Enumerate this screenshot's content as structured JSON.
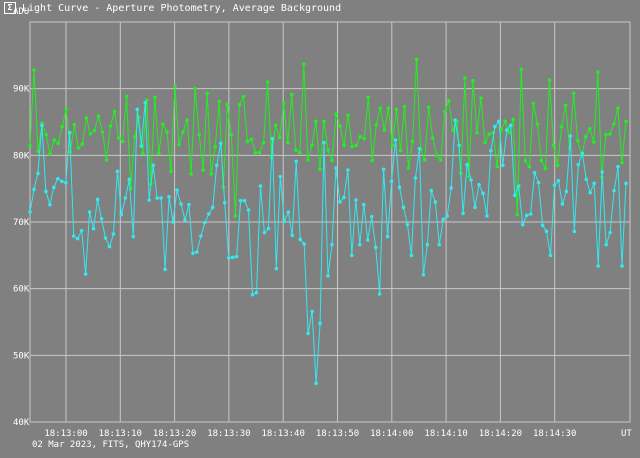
{
  "window": {
    "title": "Light Curve - Aperture Photometry, Average Background",
    "icon": "app-icon",
    "icon_glyph": "Σ"
  },
  "footer": {
    "text": "02 Mar 2023, FITS, QHY174-GPS"
  },
  "colors": {
    "background": "#808080",
    "grid": "#c8c8c8",
    "text": "#ffffff",
    "series_green": "#22ee22",
    "series_cyan": "#33e8f0"
  },
  "chart_data": {
    "type": "line",
    "y_unit_label": "ADU",
    "x_unit_label": "UT",
    "y_ticks": [
      "90K",
      "80K",
      "70K",
      "60K",
      "50K",
      "40K"
    ],
    "y_tick_values": [
      90000,
      80000,
      70000,
      60000,
      50000,
      40000
    ],
    "ylim": [
      40000,
      100000
    ],
    "x_ticks": [
      "18:13:00",
      "18:13:10",
      "18:13:20",
      "18:13:30",
      "18:13:40",
      "18:13:50",
      "18:14:00",
      "18:14:10",
      "18:14:20",
      "18:14:30"
    ],
    "grid": true,
    "series": [
      {
        "name": "",
        "color": "#22ee22",
        "values": [
          81500,
          92800,
          80600,
          84800,
          83100,
          80200,
          82300,
          81800,
          84300,
          86900,
          80500,
          84600,
          81100,
          81700,
          85600,
          83200,
          83700,
          85900,
          83500,
          79300,
          84400,
          86600,
          82600,
          82100,
          88800,
          75000,
          82800,
          85700,
          80300,
          88300,
          75700,
          88700,
          80300,
          84700,
          83500,
          77600,
          90300,
          81600,
          83500,
          85300,
          77200,
          90000,
          83100,
          77800,
          89300,
          77200,
          81300,
          88100,
          75200,
          87600,
          83100,
          70900,
          87600,
          88800,
          82100,
          82400,
          80400,
          80400,
          81900,
          91000,
          79700,
          84500,
          82700,
          87800,
          81900,
          89100,
          80800,
          80400,
          93700,
          79300,
          81500,
          85100,
          77900,
          85100,
          80800,
          79200,
          86200,
          84400,
          81500,
          86000,
          81300,
          81500,
          82800,
          82500,
          88700,
          79200,
          84600,
          87100,
          83800,
          87100,
          81500,
          86900,
          80700,
          87300,
          78100,
          82100,
          94400,
          80900,
          79300,
          87200,
          82600,
          80000,
          79300,
          86600,
          88200,
          83800,
          85000,
          77300,
          91600,
          76800,
          91200,
          83400,
          88600,
          81900,
          83200,
          83400,
          78300,
          83900,
          85100,
          83400,
          85400,
          71100,
          92900,
          79200,
          78300,
          87800,
          84700,
          79200,
          78000,
          91300,
          81500,
          78500,
          84300,
          87500,
          81100,
          89300,
          82200,
          80000,
          82800,
          84000,
          82000,
          92500,
          76700,
          83100,
          83200,
          84700,
          87100,
          78900,
          85100
        ]
      },
      {
        "name": "",
        "color": "#33e8f0",
        "values": [
          71500,
          74900,
          77300,
          84500,
          74600,
          72600,
          75200,
          76500,
          76100,
          75900,
          83400,
          67900,
          67500,
          68700,
          62200,
          71500,
          69000,
          73400,
          70500,
          67600,
          66300,
          68200,
          77600,
          71100,
          73600,
          76400,
          67800,
          86900,
          81400,
          87900,
          73300,
          78500,
          73600,
          73600,
          62900,
          73800,
          70000,
          74800,
          72700,
          70300,
          72600,
          65300,
          65500,
          67900,
          69900,
          71200,
          72200,
          78500,
          81800,
          72900,
          64600,
          64700,
          64800,
          73200,
          73200,
          71800,
          59100,
          59400,
          75400,
          68400,
          69000,
          82500,
          63000,
          76800,
          70100,
          71500,
          68000,
          79100,
          67400,
          66700,
          53300,
          56600,
          45800,
          54800,
          81900,
          61900,
          66600,
          78100,
          73000,
          73700,
          77800,
          65000,
          73300,
          66600,
          72600,
          67300,
          70800,
          66200,
          59200,
          77900,
          67800,
          76100,
          82300,
          75200,
          72200,
          69600,
          65000,
          76600,
          81000,
          62100,
          66600,
          74700,
          73000,
          66600,
          70400,
          70900,
          75100,
          85300,
          81500,
          71300,
          78600,
          76300,
          72200,
          75600,
          74300,
          70900,
          80700,
          84300,
          85100,
          78500,
          83800,
          84500,
          74000,
          75400,
          69600,
          71000,
          71200,
          77400,
          75900,
          69500,
          68600,
          65000,
          75500,
          76200,
          72700,
          74600,
          82900,
          68600,
          78600,
          80300,
          76400,
          74400,
          75800,
          63400,
          77500,
          66600,
          68400,
          74700,
          78300,
          63400,
          75800
        ]
      }
    ]
  }
}
